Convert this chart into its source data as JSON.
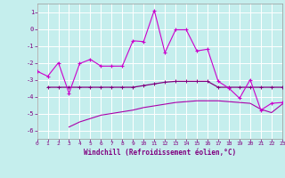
{
  "xlabel": "Windchill (Refroidissement éolien,°C)",
  "xlim": [
    0,
    23
  ],
  "ylim": [
    -6.5,
    1.5
  ],
  "yticks": [
    1,
    0,
    -1,
    -2,
    -3,
    -4,
    -5,
    -6
  ],
  "xticks": [
    0,
    1,
    2,
    3,
    4,
    5,
    6,
    7,
    8,
    9,
    10,
    11,
    12,
    13,
    14,
    15,
    16,
    17,
    18,
    19,
    20,
    21,
    22,
    23
  ],
  "background_color": "#c5eeed",
  "grid_color": "#ddf5f5",
  "line1": {
    "x": [
      0,
      1,
      2,
      3,
      4,
      5,
      6,
      7,
      8,
      9,
      10,
      11,
      12,
      13,
      14,
      15,
      16,
      17,
      18,
      19,
      20,
      21,
      22,
      23
    ],
    "y": [
      -2.5,
      -2.8,
      -2.0,
      -3.8,
      -2.05,
      -1.8,
      -2.2,
      -2.2,
      -2.2,
      -0.7,
      -0.75,
      1.1,
      -1.4,
      -0.05,
      -0.05,
      -1.3,
      -1.2,
      -3.1,
      -3.5,
      -4.1,
      -3.0,
      -4.8,
      -4.4,
      -4.35
    ],
    "color": "#cc00cc",
    "marker": "+"
  },
  "line2": {
    "x": [
      1,
      2,
      3,
      4,
      5,
      6,
      7,
      8,
      9,
      10,
      11,
      12,
      13,
      14,
      15,
      16,
      17,
      18,
      19,
      20,
      21,
      22,
      23
    ],
    "y": [
      -3.45,
      -3.45,
      -3.45,
      -3.45,
      -3.45,
      -3.45,
      -3.45,
      -3.45,
      -3.45,
      -3.35,
      -3.25,
      -3.15,
      -3.1,
      -3.1,
      -3.1,
      -3.1,
      -3.45,
      -3.45,
      -3.45,
      -3.45,
      -3.45,
      -3.45,
      -3.45
    ],
    "color": "#800080",
    "marker": "+"
  },
  "line3": {
    "x": [
      3,
      4,
      5,
      6,
      7,
      8,
      9,
      10,
      11,
      12,
      13,
      14,
      15,
      16,
      17,
      18,
      19,
      20,
      21,
      22,
      23
    ],
    "y": [
      -5.8,
      -5.5,
      -5.3,
      -5.1,
      -5.0,
      -4.9,
      -4.8,
      -4.65,
      -4.55,
      -4.45,
      -4.35,
      -4.3,
      -4.25,
      -4.25,
      -4.25,
      -4.3,
      -4.35,
      -4.4,
      -4.75,
      -4.95,
      -4.45
    ],
    "color": "#aa00aa",
    "marker": null
  }
}
